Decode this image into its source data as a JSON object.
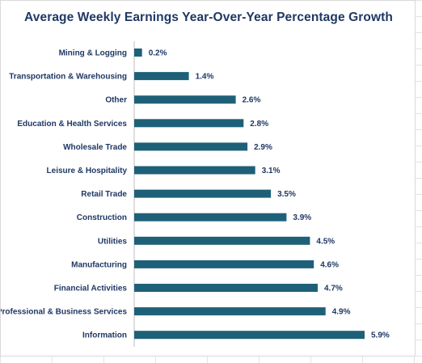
{
  "chart_data": {
    "type": "bar",
    "orientation": "horizontal",
    "title": "Average Weekly Earnings Year-Over-Year Percentage Growth",
    "xlabel": "",
    "ylabel": "",
    "xlim": [
      0,
      6.2
    ],
    "grid": false,
    "legend": "none",
    "bar_color": "#1f6079",
    "categories": [
      "Mining & Logging",
      "Transportation & Warehousing",
      "Other",
      "Education & Health Services",
      "Wholesale Trade",
      "Leisure & Hospitality",
      "Retail Trade",
      "Construction",
      "Utilities",
      "Manufacturing",
      "Financial Activities",
      "Professional & Business Services",
      "Information"
    ],
    "values": [
      0.2,
      1.4,
      2.6,
      2.8,
      2.9,
      3.1,
      3.5,
      3.9,
      4.5,
      4.6,
      4.7,
      4.9,
      5.9
    ],
    "value_labels": [
      "0.2%",
      "1.4%",
      "2.6%",
      "2.8%",
      "2.9%",
      "3.1%",
      "3.5%",
      "3.9%",
      "4.5%",
      "4.6%",
      "4.7%",
      "4.9%",
      "5.9%"
    ]
  }
}
